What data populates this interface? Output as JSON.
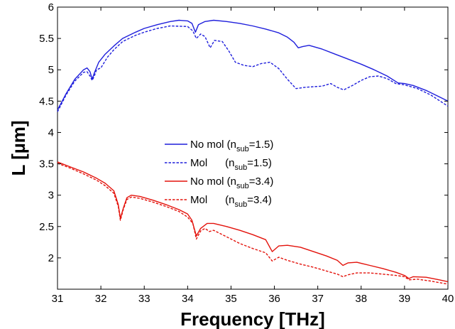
{
  "chart_data": {
    "type": "line",
    "title": "",
    "xlabel": "Frequency [THz]",
    "ylabel": "L [µm]",
    "xlim": [
      31,
      40
    ],
    "ylim": [
      1.5,
      6
    ],
    "xticks": [
      31,
      32,
      33,
      34,
      35,
      36,
      37,
      38,
      39,
      40
    ],
    "yticks": [
      2,
      2.5,
      3,
      3.5,
      4,
      4.5,
      5,
      5.5,
      6
    ],
    "grid": false,
    "legend_position": "center",
    "colors": {
      "blue": "#1f1fdc",
      "red": "#e3120b"
    },
    "series": [
      {
        "name": "No mol (n_sub=1.5)",
        "legend_main": "No mol (n",
        "legend_sub": "sub",
        "legend_tail": "=1.5)",
        "color": "#1f1fdc",
        "dash": "solid",
        "points": [
          [
            31.0,
            4.36
          ],
          [
            31.2,
            4.62
          ],
          [
            31.4,
            4.85
          ],
          [
            31.6,
            5.0
          ],
          [
            31.68,
            5.03
          ],
          [
            31.75,
            4.97
          ],
          [
            31.8,
            4.85
          ],
          [
            31.85,
            4.95
          ],
          [
            31.95,
            5.12
          ],
          [
            32.1,
            5.25
          ],
          [
            32.3,
            5.38
          ],
          [
            32.5,
            5.5
          ],
          [
            32.8,
            5.6
          ],
          [
            33.0,
            5.66
          ],
          [
            33.3,
            5.72
          ],
          [
            33.6,
            5.77
          ],
          [
            33.8,
            5.79
          ],
          [
            34.0,
            5.78
          ],
          [
            34.1,
            5.74
          ],
          [
            34.18,
            5.6
          ],
          [
            34.25,
            5.72
          ],
          [
            34.4,
            5.77
          ],
          [
            34.6,
            5.79
          ],
          [
            34.9,
            5.77
          ],
          [
            35.2,
            5.74
          ],
          [
            35.5,
            5.7
          ],
          [
            35.8,
            5.65
          ],
          [
            36.1,
            5.59
          ],
          [
            36.3,
            5.52
          ],
          [
            36.45,
            5.44
          ],
          [
            36.55,
            5.35
          ],
          [
            36.65,
            5.37
          ],
          [
            36.8,
            5.39
          ],
          [
            37.1,
            5.33
          ],
          [
            37.4,
            5.25
          ],
          [
            37.7,
            5.17
          ],
          [
            38.0,
            5.09
          ],
          [
            38.3,
            5.0
          ],
          [
            38.6,
            4.9
          ],
          [
            38.85,
            4.79
          ],
          [
            39.0,
            4.78
          ],
          [
            39.2,
            4.75
          ],
          [
            39.5,
            4.67
          ],
          [
            39.8,
            4.57
          ],
          [
            40.0,
            4.5
          ]
        ]
      },
      {
        "name": "Mol (n_sub=1.5)",
        "legend_main": "Mol      (n",
        "legend_sub": "sub",
        "legend_tail": "=1.5)",
        "color": "#1f1fdc",
        "dash": "dashed",
        "points": [
          [
            31.0,
            4.33
          ],
          [
            31.2,
            4.6
          ],
          [
            31.4,
            4.82
          ],
          [
            31.6,
            4.96
          ],
          [
            31.68,
            4.97
          ],
          [
            31.75,
            4.9
          ],
          [
            31.8,
            4.83
          ],
          [
            31.85,
            4.9
          ],
          [
            31.9,
            5.0
          ],
          [
            32.0,
            5.03
          ],
          [
            32.15,
            5.2
          ],
          [
            32.3,
            5.32
          ],
          [
            32.5,
            5.45
          ],
          [
            32.8,
            5.55
          ],
          [
            33.0,
            5.6
          ],
          [
            33.3,
            5.66
          ],
          [
            33.6,
            5.7
          ],
          [
            34.0,
            5.69
          ],
          [
            34.12,
            5.62
          ],
          [
            34.2,
            5.5
          ],
          [
            34.3,
            5.57
          ],
          [
            34.4,
            5.53
          ],
          [
            34.52,
            5.35
          ],
          [
            34.62,
            5.47
          ],
          [
            34.8,
            5.45
          ],
          [
            34.95,
            5.3
          ],
          [
            35.1,
            5.12
          ],
          [
            35.3,
            5.07
          ],
          [
            35.5,
            5.05
          ],
          [
            35.7,
            5.1
          ],
          [
            35.9,
            5.12
          ],
          [
            36.1,
            5.02
          ],
          [
            36.3,
            4.85
          ],
          [
            36.5,
            4.7
          ],
          [
            36.7,
            4.72
          ],
          [
            36.9,
            4.73
          ],
          [
            37.1,
            4.74
          ],
          [
            37.3,
            4.78
          ],
          [
            37.45,
            4.72
          ],
          [
            37.6,
            4.68
          ],
          [
            37.8,
            4.75
          ],
          [
            38.0,
            4.83
          ],
          [
            38.2,
            4.89
          ],
          [
            38.4,
            4.9
          ],
          [
            38.6,
            4.86
          ],
          [
            38.8,
            4.78
          ],
          [
            39.0,
            4.76
          ],
          [
            39.3,
            4.7
          ],
          [
            39.6,
            4.6
          ],
          [
            40.0,
            4.42
          ]
        ]
      },
      {
        "name": "No mol (n_sub=3.4)",
        "legend_main": "No mol (n",
        "legend_sub": "sub",
        "legend_tail": "=3.4)",
        "color": "#e3120b",
        "dash": "solid",
        "points": [
          [
            31.0,
            3.53
          ],
          [
            31.3,
            3.45
          ],
          [
            31.6,
            3.37
          ],
          [
            31.9,
            3.27
          ],
          [
            32.1,
            3.19
          ],
          [
            32.3,
            3.07
          ],
          [
            32.4,
            2.85
          ],
          [
            32.45,
            2.63
          ],
          [
            32.52,
            2.8
          ],
          [
            32.6,
            2.96
          ],
          [
            32.7,
            3.0
          ],
          [
            32.9,
            2.98
          ],
          [
            33.2,
            2.92
          ],
          [
            33.5,
            2.85
          ],
          [
            33.8,
            2.77
          ],
          [
            34.0,
            2.7
          ],
          [
            34.1,
            2.6
          ],
          [
            34.2,
            2.35
          ],
          [
            34.3,
            2.47
          ],
          [
            34.45,
            2.55
          ],
          [
            34.6,
            2.55
          ],
          [
            34.9,
            2.5
          ],
          [
            35.2,
            2.44
          ],
          [
            35.5,
            2.37
          ],
          [
            35.8,
            2.29
          ],
          [
            35.95,
            2.1
          ],
          [
            36.1,
            2.19
          ],
          [
            36.3,
            2.2
          ],
          [
            36.6,
            2.17
          ],
          [
            36.9,
            2.1
          ],
          [
            37.2,
            2.03
          ],
          [
            37.45,
            1.96
          ],
          [
            37.58,
            1.88
          ],
          [
            37.7,
            1.92
          ],
          [
            37.9,
            1.93
          ],
          [
            38.2,
            1.88
          ],
          [
            38.5,
            1.83
          ],
          [
            38.8,
            1.77
          ],
          [
            39.0,
            1.72
          ],
          [
            39.1,
            1.67
          ],
          [
            39.2,
            1.7
          ],
          [
            39.5,
            1.69
          ],
          [
            39.8,
            1.65
          ],
          [
            40.0,
            1.62
          ]
        ]
      },
      {
        "name": "Mol (n_sub=3.4)",
        "legend_main": "Mol      (n",
        "legend_sub": "sub",
        "legend_tail": "=3.4)",
        "color": "#e3120b",
        "dash": "dashed",
        "points": [
          [
            31.0,
            3.51
          ],
          [
            31.3,
            3.43
          ],
          [
            31.6,
            3.34
          ],
          [
            31.9,
            3.24
          ],
          [
            32.1,
            3.15
          ],
          [
            32.3,
            3.03
          ],
          [
            32.4,
            2.82
          ],
          [
            32.45,
            2.6
          ],
          [
            32.52,
            2.78
          ],
          [
            32.6,
            2.93
          ],
          [
            32.7,
            2.97
          ],
          [
            32.9,
            2.95
          ],
          [
            33.2,
            2.89
          ],
          [
            33.5,
            2.82
          ],
          [
            33.8,
            2.74
          ],
          [
            34.0,
            2.65
          ],
          [
            34.12,
            2.55
          ],
          [
            34.2,
            2.3
          ],
          [
            34.3,
            2.43
          ],
          [
            34.4,
            2.47
          ],
          [
            34.5,
            2.42
          ],
          [
            34.6,
            2.44
          ],
          [
            34.8,
            2.37
          ],
          [
            35.0,
            2.3
          ],
          [
            35.2,
            2.23
          ],
          [
            35.5,
            2.15
          ],
          [
            35.8,
            2.08
          ],
          [
            35.95,
            1.95
          ],
          [
            36.1,
            2.01
          ],
          [
            36.3,
            1.96
          ],
          [
            36.6,
            1.9
          ],
          [
            36.9,
            1.85
          ],
          [
            37.2,
            1.79
          ],
          [
            37.45,
            1.74
          ],
          [
            37.58,
            1.7
          ],
          [
            37.7,
            1.73
          ],
          [
            37.9,
            1.76
          ],
          [
            38.2,
            1.76
          ],
          [
            38.5,
            1.74
          ],
          [
            38.8,
            1.72
          ],
          [
            39.0,
            1.7
          ],
          [
            39.1,
            1.65
          ],
          [
            39.3,
            1.66
          ],
          [
            39.6,
            1.63
          ],
          [
            40.0,
            1.58
          ]
        ]
      }
    ]
  }
}
